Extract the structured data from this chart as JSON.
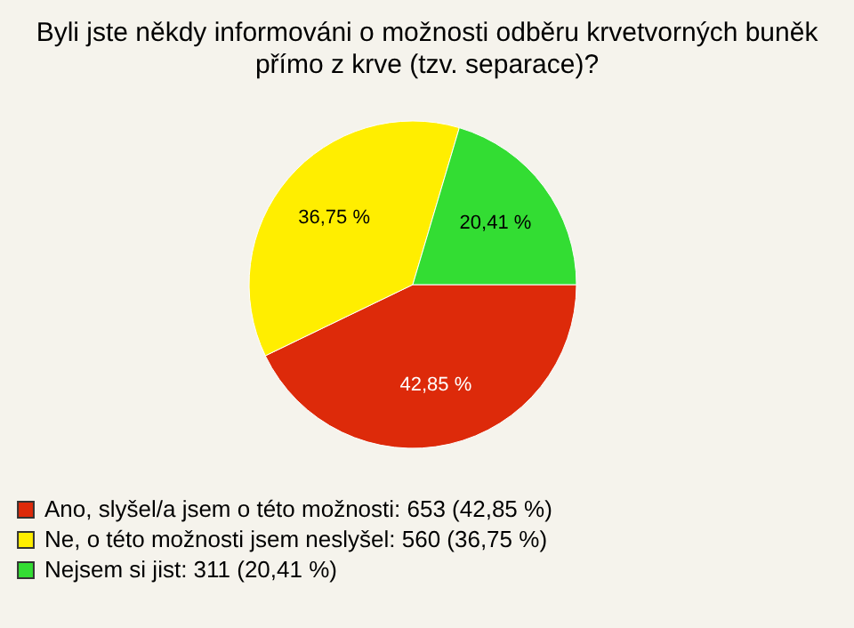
{
  "chart_data": {
    "type": "pie",
    "title": "Byli jste někdy informováni o možnosti odběru krvetvorných buněk přímo z krve (tzv. separace)?",
    "categories": [
      "Ano, slyšel/a jsem o této možnosti: 653 (42,85 %)",
      "Ne, o této možnosti jsem neslyšel: 560 (36,75 %)",
      "Nejsem si jist: 311 (20,41 %)"
    ],
    "values": [
      42.85,
      36.75,
      20.41
    ],
    "value_labels": [
      "42,85 %",
      "36,75 %",
      "20,41 %"
    ],
    "colors": [
      "#dd2a0a",
      "#ffee00",
      "#33dd33"
    ],
    "legend": "bottom left"
  }
}
